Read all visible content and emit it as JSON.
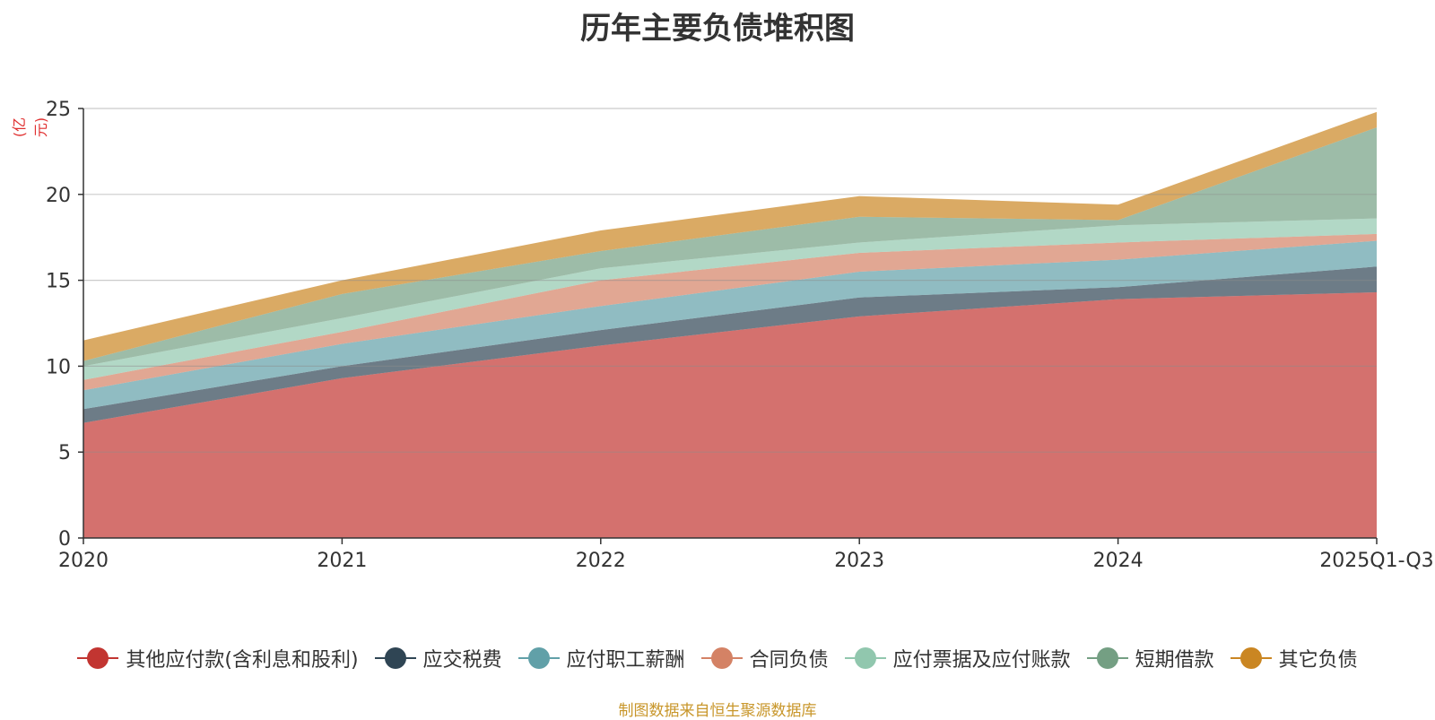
{
  "page": {
    "title": "历年主要负债堆积图",
    "unit_label": "(亿元)",
    "source": "制图数据来自恒生聚源数据库",
    "unit_color": "#e03030",
    "source_color": "#c8962a"
  },
  "chart_data": {
    "type": "area",
    "stacked": true,
    "title": "历年主要负债堆积图",
    "ylabel": "(亿元)",
    "xlabel": "",
    "categories": [
      "2020",
      "2021",
      "2022",
      "2023",
      "2024",
      "2025Q1-Q3"
    ],
    "ylim": [
      0,
      25
    ],
    "yticks": [
      0,
      5,
      10,
      15,
      20,
      25
    ],
    "grid": true,
    "legend_position": "bottom",
    "series": [
      {
        "name": "其他应付款(含利息和股利)",
        "color": "#c23531",
        "values": [
          6.7,
          9.3,
          11.2,
          12.9,
          13.9,
          14.3
        ]
      },
      {
        "name": "应交税费",
        "color": "#2f4554",
        "values": [
          0.8,
          0.7,
          0.9,
          1.1,
          0.7,
          1.5
        ]
      },
      {
        "name": "应付职工薪酬",
        "color": "#61a0a8",
        "values": [
          1.1,
          1.3,
          1.4,
          1.5,
          1.6,
          1.5
        ]
      },
      {
        "name": "合同负债",
        "color": "#d48265",
        "values": [
          0.6,
          0.7,
          1.5,
          1.1,
          1.0,
          0.4
        ]
      },
      {
        "name": "应付票据及应付账款",
        "color": "#91c7ae",
        "values": [
          0.8,
          0.8,
          0.7,
          0.6,
          1.0,
          0.9
        ]
      },
      {
        "name": "短期借款",
        "color": "#749f83",
        "values": [
          0.3,
          1.4,
          1.0,
          1.5,
          0.3,
          5.3
        ]
      },
      {
        "name": "其它负债",
        "color": "#ca8622",
        "values": [
          1.2,
          0.8,
          1.2,
          1.2,
          0.9,
          0.9
        ]
      }
    ]
  }
}
